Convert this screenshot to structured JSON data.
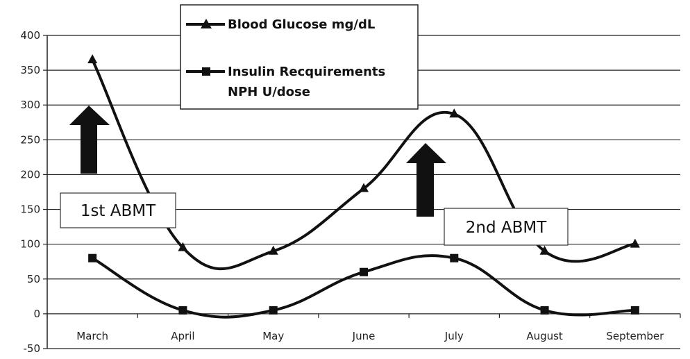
{
  "chart_data": {
    "type": "line",
    "categories": [
      "March",
      "April",
      "May",
      "June",
      "July",
      "August",
      "September"
    ],
    "series": [
      {
        "name": "Blood Glucose mg/dL",
        "marker": "triangle",
        "values": [
          365,
          95,
          90,
          180,
          287,
          90,
          100
        ]
      },
      {
        "name": "Insulin Recquirements NPH U/dose",
        "marker": "square",
        "values": [
          80,
          5,
          5,
          60,
          80,
          5,
          5
        ]
      }
    ],
    "ylim": [
      -50,
      400
    ],
    "yticks": [
      400,
      350,
      300,
      250,
      200,
      150,
      100,
      50,
      0,
      -50
    ],
    "grid": true,
    "legend_position": "top-center",
    "annotations": [
      {
        "text": "1st ABMT",
        "category": "March"
      },
      {
        "text": "2nd ABMT",
        "category": "July"
      }
    ],
    "colors": {
      "line": "#111111",
      "grid": "#222222",
      "background": "#ffffff"
    }
  }
}
